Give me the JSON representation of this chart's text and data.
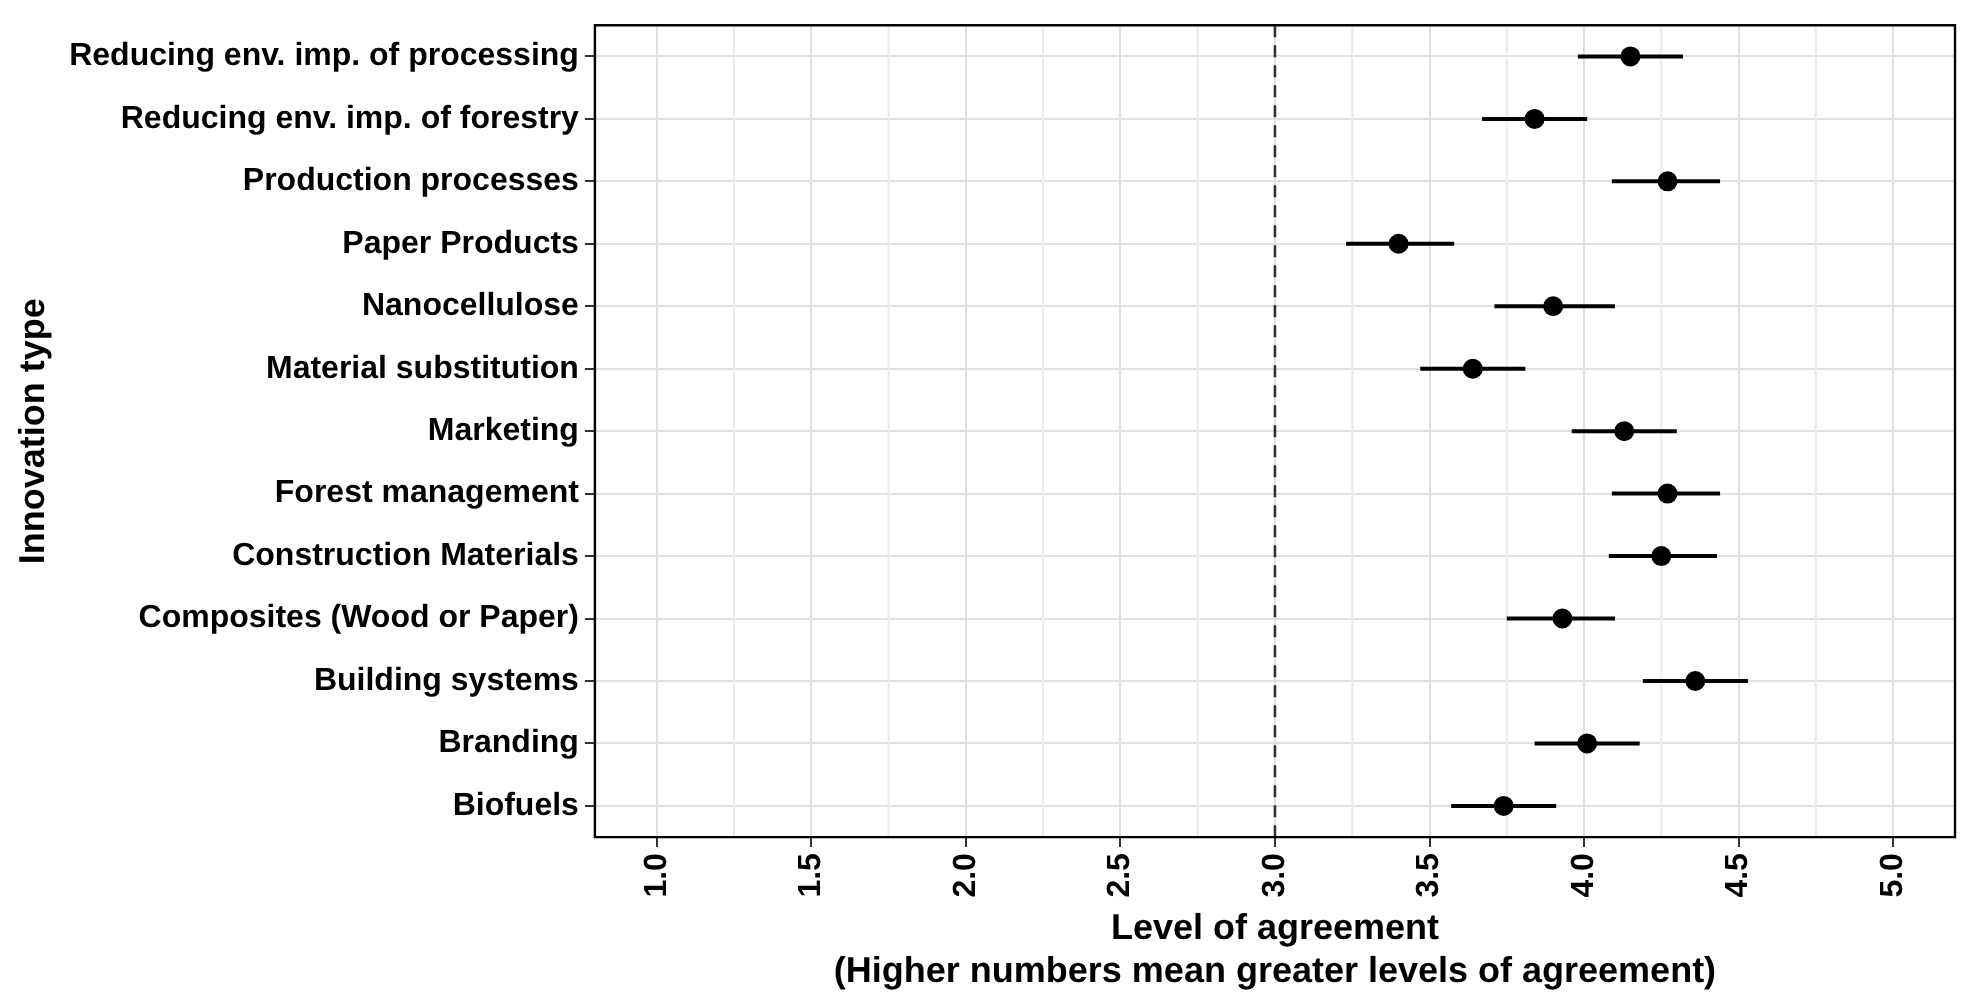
{
  "chart_data": {
    "type": "scatter",
    "orientation": "horizontal",
    "xlabel": "Level of agreement\n(Higher numbers mean greater levels of agreement)",
    "ylabel": "Innovation type",
    "categories": [
      "Reducing env. imp. of processing",
      "Reducing env. imp. of forestry",
      "Production processes",
      "Paper Products",
      "Nanocellulose",
      "Material substitution",
      "Marketing",
      "Forest management",
      "Construction Materials",
      "Composites (Wood or Paper)",
      "Building systems",
      "Branding",
      "Biofuels"
    ],
    "values": [
      4.15,
      3.84,
      4.27,
      3.4,
      3.9,
      3.64,
      4.13,
      4.27,
      4.25,
      3.93,
      4.36,
      4.01,
      3.74
    ],
    "errors": [
      [
        3.98,
        4.32
      ],
      [
        3.67,
        4.01
      ],
      [
        4.09,
        4.44
      ],
      [
        3.23,
        3.58
      ],
      [
        3.71,
        4.1
      ],
      [
        3.47,
        3.81
      ],
      [
        3.96,
        4.3
      ],
      [
        4.09,
        4.44
      ],
      [
        4.08,
        4.43
      ],
      [
        3.75,
        4.1
      ],
      [
        4.19,
        4.53
      ],
      [
        3.84,
        4.18
      ],
      [
        3.57,
        3.91
      ]
    ],
    "color": "#000000",
    "marker": "circle",
    "xlim": [
      0.8,
      5.2
    ],
    "xticks": [
      {
        "value": 1,
        "label": "1.0"
      },
      {
        "value": 1.5,
        "label": "1.5"
      },
      {
        "value": 2,
        "label": "2.0"
      },
      {
        "value": 2.5,
        "label": "2.5"
      },
      {
        "value": 3,
        "label": "3.0"
      },
      {
        "value": 3.5,
        "label": "3.5"
      },
      {
        "value": 4,
        "label": "4.0"
      },
      {
        "value": 4.5,
        "label": "4.5"
      },
      {
        "value": 5,
        "label": "5.0"
      }
    ],
    "ref_lines": [
      {
        "axis": "x",
        "value": 3,
        "color": "#333333",
        "line_style": "dashed"
      }
    ],
    "grid": true,
    "legend": false
  }
}
